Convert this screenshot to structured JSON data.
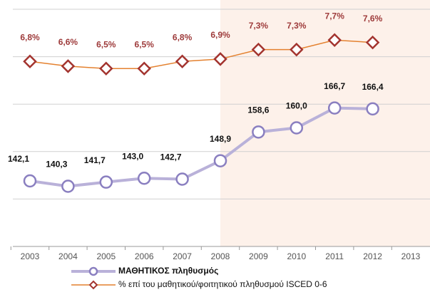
{
  "chart_data": {
    "type": "line",
    "categories": [
      "2003",
      "2004",
      "2005",
      "2006",
      "2007",
      "2008",
      "2009",
      "2010",
      "2011",
      "2012",
      "2013"
    ],
    "series": [
      {
        "name": "ΜΑΘΗΤΙΚΟΣ πληθυσμός",
        "color": "#b9b1d9",
        "marker_color": "#8a7fc0",
        "values": [
          142.1,
          140.3,
          141.7,
          143.0,
          142.7,
          148.9,
          158.6,
          160.0,
          166.7,
          166.4,
          null
        ],
        "value_labels": [
          "142,1",
          "140,3",
          "141,7",
          "143,0",
          "142,7",
          "148,9",
          "158,6",
          "160,0",
          "166,7",
          "166,4",
          null
        ]
      },
      {
        "name": "% επί του μαθητικού/φοιτητικού πληθυσμού ISCED 0-6",
        "color": "#e4812f",
        "marker_color": "#a3342f",
        "axis": "y2",
        "values": [
          6.8,
          6.6,
          6.5,
          6.5,
          6.8,
          6.9,
          7.3,
          7.3,
          7.7,
          7.6,
          null
        ],
        "value_labels": [
          "6,8%",
          "6,6%",
          "6,5%",
          "6,5%",
          "6,8%",
          "6,9%",
          "7,3%",
          "7,3%",
          "7,7%",
          "7,6%",
          null
        ]
      }
    ],
    "ylim": [
      120,
      200
    ],
    "yticks": [
      120,
      136,
      152,
      168,
      184,
      200
    ],
    "y2lim": [
      -1,
      9
    ],
    "grid": true,
    "shaded_from": "2008",
    "legend": "bottom"
  }
}
